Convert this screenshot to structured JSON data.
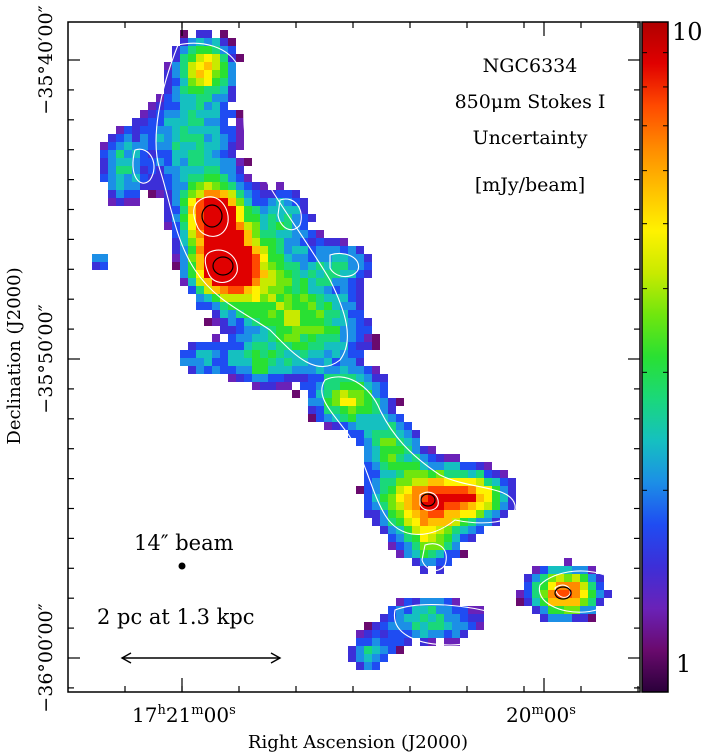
{
  "title_lines": [
    "NGC6334",
    "850μm Stokes I",
    "Uncertainty",
    "[mJy/beam]"
  ],
  "x_axis": {
    "label": "Right Ascension (J2000)",
    "ticks": [
      {
        "h": "17",
        "m": "21",
        "s": "00"
      },
      {
        "m": "20",
        "s": "00"
      }
    ]
  },
  "y_axis": {
    "label": "Declination (J2000)",
    "ticks": [
      "−35°40′00″",
      "−35°50′00″",
      "−36°00′00″"
    ]
  },
  "colorbar": {
    "max_label": "10",
    "min_label": "1",
    "scale": "log",
    "colors": [
      "#2a003a",
      "#6a0a6e",
      "#6a22b8",
      "#3c2fd8",
      "#1f4cf2",
      "#1c8fe6",
      "#15c0c0",
      "#1ad87a",
      "#29e033",
      "#70e60e",
      "#c8ea00",
      "#fff200",
      "#ffc000",
      "#ff8a00",
      "#ff4a00",
      "#e00000",
      "#b00000"
    ]
  },
  "beam": {
    "label": "14″ beam"
  },
  "scale_bar": {
    "label": "2 pc at 1.3 kpc"
  }
}
